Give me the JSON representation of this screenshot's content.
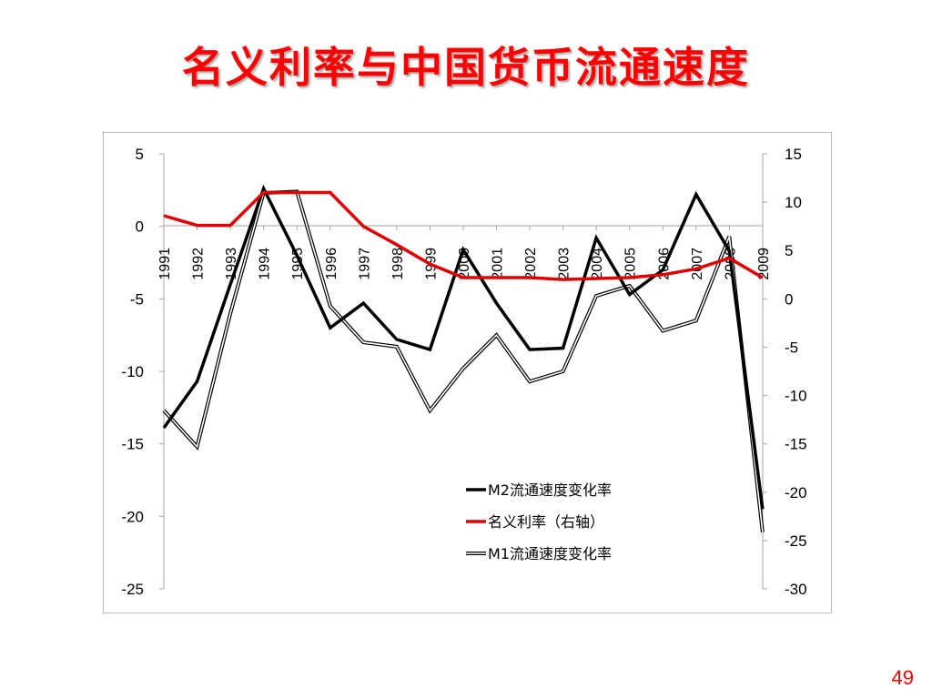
{
  "slide": {
    "title": "名义利率与中国货币流通速度",
    "page_number": "49"
  },
  "colors": {
    "title": "#ff0000",
    "m2": "#000000",
    "rate": "#e00000",
    "m1_outline": "#000000",
    "m1_fill": "#ffffff",
    "axis": "#a6a6a6"
  },
  "chart_data": {
    "type": "line",
    "categories": [
      "1991",
      "1992",
      "1993",
      "1994",
      "1995",
      "1996",
      "1997",
      "1998",
      "1999",
      "2000",
      "2001",
      "2002",
      "2003",
      "2004",
      "2005",
      "2006",
      "2007",
      "2008",
      "2009"
    ],
    "left_axis": {
      "ylim": [
        -25,
        5
      ],
      "ticks": [
        5,
        0,
        -5,
        -10,
        -15,
        -20,
        -25
      ]
    },
    "right_axis": {
      "ylim": [
        -30,
        15
      ],
      "ticks": [
        15,
        10,
        5,
        0,
        -5,
        -10,
        -15,
        -20,
        -25,
        -30
      ]
    },
    "series": [
      {
        "name": "M2流通速度变化率",
        "axis": "left",
        "style": "black-thick",
        "values": [
          -13.9,
          -10.7,
          -4.0,
          2.6,
          -2.0,
          -7.0,
          -5.3,
          -7.8,
          -8.5,
          -1.6,
          -5.3,
          -8.5,
          -8.4,
          -0.8,
          -4.7,
          -3.0,
          2.2,
          -1.7,
          -19.5
        ]
      },
      {
        "name": "名义利率（右轴）",
        "axis": "right",
        "style": "red-thick",
        "values": [
          8.6,
          7.6,
          7.6,
          11.0,
          11.0,
          11.0,
          7.5,
          5.6,
          3.6,
          2.2,
          2.2,
          2.2,
          2.0,
          2.1,
          2.2,
          2.5,
          3.1,
          4.2,
          2.2
        ]
      },
      {
        "name": "M1流通速度变化率",
        "axis": "left",
        "style": "white-outline",
        "values": [
          -12.7,
          -15.2,
          -6.0,
          2.3,
          2.4,
          -5.5,
          -8.0,
          -8.3,
          -12.7,
          -9.8,
          -7.5,
          -10.7,
          -10.0,
          -4.8,
          -4.1,
          -7.2,
          -6.5,
          -0.7,
          -21.1
        ]
      }
    ],
    "legend": "lower-center"
  }
}
